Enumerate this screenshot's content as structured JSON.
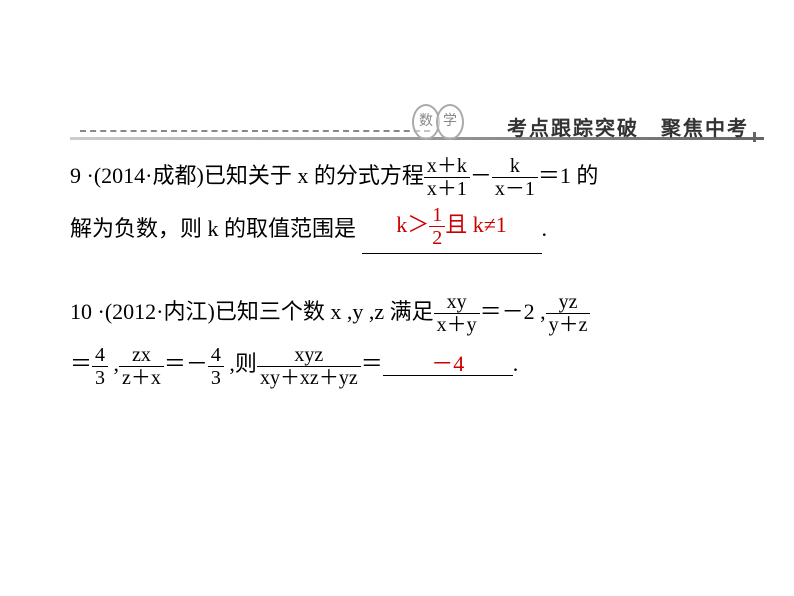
{
  "header": {
    "badge_left": "数",
    "badge_right": "学",
    "title": "考点跟踪突破　聚焦中考"
  },
  "problem9": {
    "number": "9",
    "year_city": "(2014·成都)",
    "text_a": "已知关于 x 的分式方程",
    "eq_frac1_num": "x＋k",
    "eq_frac1_den": "x＋1",
    "minus": "－",
    "eq_frac2_num": "k",
    "eq_frac2_den": "x－1",
    "eq_tail": "＝1 的",
    "text_b": "解为负数，则 k 的取值范围是",
    "answer_pre": "k＞",
    "answer_frac_num": "1",
    "answer_frac_den": "2",
    "answer_post_cn": "且",
    "answer_post": " k≠1",
    "period": "."
  },
  "problem10": {
    "number": "10",
    "year_city": "(2012·内江)",
    "text_a": "已知三个数 x ,y ,z 满足",
    "frac1_num": "xy",
    "frac1_den": "x＋y",
    "eq1": "＝－2 ,",
    "frac2_num": "yz",
    "frac2_den": "y＋z",
    "eq2_pre": "＝",
    "frac3_num": "4",
    "frac3_den": "3",
    "comma1": " ,",
    "frac4_num": "zx",
    "frac4_den": "z＋x",
    "eq3": "＝－",
    "frac5_num": "4",
    "frac5_den": "3",
    "then": " ,则",
    "frac6_num": "xyz",
    "frac6_den": "xy＋xz＋yz",
    "eq_final": "＝",
    "answer": "－4",
    "period": "."
  },
  "colors": {
    "answer": "#c00",
    "text": "#000"
  }
}
